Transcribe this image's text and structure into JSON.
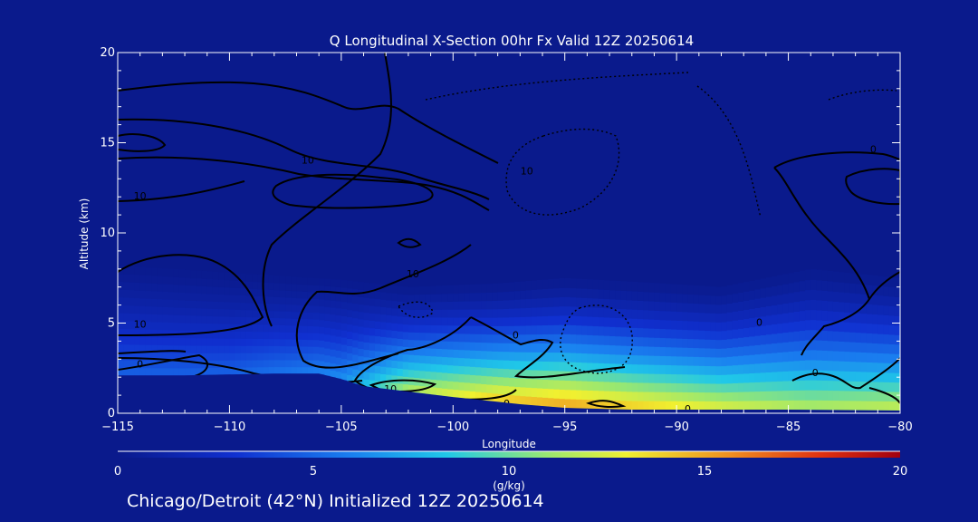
{
  "chart_data": {
    "type": "heatmap",
    "title": "Q Longitudinal X-Section 00hr  Fx Valid 12Z 20250614",
    "xlabel": "Longitude",
    "ylabel": "Altitude (km)",
    "xlim": [
      -115,
      -80
    ],
    "ylim": [
      0,
      20
    ],
    "x_ticks": [
      "−115",
      "−110",
      "−105",
      "−100",
      "−95",
      "−90",
      "−85",
      "−80"
    ],
    "y_ticks": [
      "0",
      "5",
      "10",
      "15",
      "20"
    ],
    "colorbar": {
      "label": "(g/kg)",
      "range": [
        0,
        20
      ],
      "ticks": [
        "0",
        "5",
        "10",
        "15",
        "20"
      ]
    },
    "terrain_km": [
      {
        "lon": -115,
        "alt": 2.1
      },
      {
        "lon": -112,
        "alt": 2.1
      },
      {
        "lon": -108,
        "alt": 2.2
      },
      {
        "lon": -106,
        "alt": 2.2
      },
      {
        "lon": -105,
        "alt": 1.9
      },
      {
        "lon": -104,
        "alt": 1.5
      },
      {
        "lon": -102,
        "alt": 1.2
      },
      {
        "lon": -100,
        "alt": 0.9
      },
      {
        "lon": -97,
        "alt": 0.5
      },
      {
        "lon": -95,
        "alt": 0.3
      },
      {
        "lon": -92,
        "alt": 0.2
      },
      {
        "lon": -85,
        "alt": 0.2
      },
      {
        "lon": -80,
        "alt": 0.15
      }
    ],
    "moisture_profile_gkg": [
      {
        "lon": -115,
        "surface_q": 3.5,
        "top_km": 8.2
      },
      {
        "lon": -110,
        "surface_q": 3.5,
        "top_km": 7.8
      },
      {
        "lon": -105,
        "surface_q": 5.0,
        "top_km": 7.4
      },
      {
        "lon": -102,
        "surface_q": 10.0,
        "top_km": 7.0
      },
      {
        "lon": -98,
        "surface_q": 12.5,
        "top_km": 7.2
      },
      {
        "lon": -95,
        "surface_q": 13.5,
        "top_km": 7.5
      },
      {
        "lon": -92,
        "surface_q": 12.5,
        "top_km": 7.3
      },
      {
        "lon": -88,
        "surface_q": 11.0,
        "top_km": 7.0
      },
      {
        "lon": -84,
        "surface_q": 10.0,
        "top_km": 8.0
      },
      {
        "lon": -80,
        "surface_q": 10.5,
        "top_km": 7.5
      }
    ],
    "contour_labels": [
      {
        "text": "10",
        "lon": -106.5,
        "alt": 14.0
      },
      {
        "text": "10",
        "lon": -114.0,
        "alt": 12.0
      },
      {
        "text": "10",
        "lon": -96.7,
        "alt": 13.4
      },
      {
        "text": "0",
        "lon": -81.2,
        "alt": 14.6
      },
      {
        "text": "10",
        "lon": -101.8,
        "alt": 7.7
      },
      {
        "text": "10",
        "lon": -114.0,
        "alt": 4.9
      },
      {
        "text": "0",
        "lon": -97.2,
        "alt": 4.3
      },
      {
        "text": "0",
        "lon": -86.3,
        "alt": 5.0
      },
      {
        "text": "0",
        "lon": -114.0,
        "alt": 2.7
      },
      {
        "text": "10",
        "lon": -102.8,
        "alt": 1.3
      },
      {
        "text": "0",
        "lon": -83.8,
        "alt": 2.2
      },
      {
        "text": "0",
        "lon": -97.6,
        "alt": 0.5
      },
      {
        "text": "0",
        "lon": -89.5,
        "alt": 0.2
      }
    ]
  },
  "colors": {
    "background": "#0a1a8c",
    "axes": "#ffffff",
    "contour": "#000000",
    "text": "#ffffff"
  },
  "caption": "Chicago/Detroit (42°N) Initialized 12Z 20250614"
}
